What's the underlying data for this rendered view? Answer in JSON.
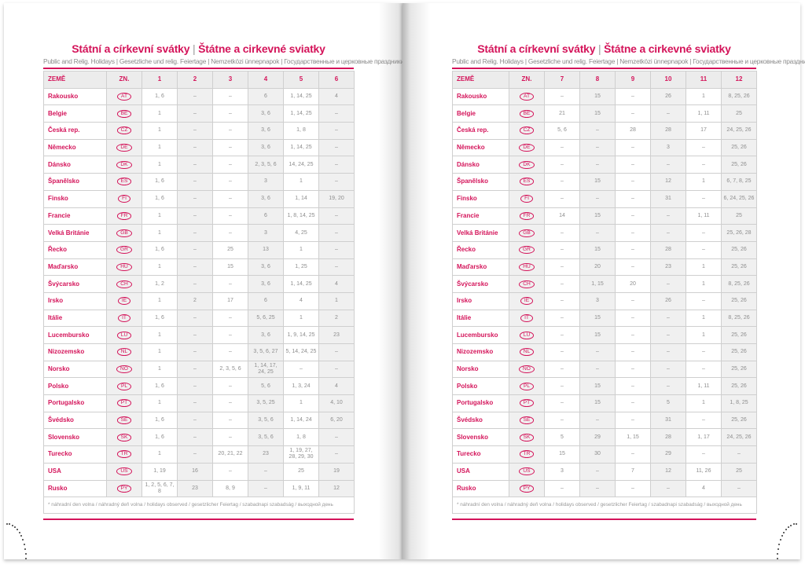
{
  "title_cz": "Státní a církevní svátky",
  "title_sep": "|",
  "title_sk": "Štátne a cirkevné sviatky",
  "subtitle": "Public and Relig. Holidays | Gesetzliche und relig. Feiertage | Nemzetközi ünnepnapok | Государственные и церковные праздники",
  "footnote": "* náhradní den volna / náhradný deň volna / holidays observed / gesetzlicher Feiertag / szabadnapi szabadság / выходной день",
  "headers": {
    "country": "ZEMĚ",
    "code": "ZN."
  },
  "accent_color": "#d4145a",
  "countries": [
    {
      "name": "Rakousko",
      "code": "AT"
    },
    {
      "name": "Belgie",
      "code": "BE"
    },
    {
      "name": "Česká rep.",
      "code": "CZ"
    },
    {
      "name": "Německo",
      "code": "DE"
    },
    {
      "name": "Dánsko",
      "code": "DK"
    },
    {
      "name": "Španělsko",
      "code": "ES"
    },
    {
      "name": "Finsko",
      "code": "FI"
    },
    {
      "name": "Francie",
      "code": "FR"
    },
    {
      "name": "Velká Británie",
      "code": "GB"
    },
    {
      "name": "Řecko",
      "code": "GR"
    },
    {
      "name": "Maďarsko",
      "code": "HU"
    },
    {
      "name": "Švýcarsko",
      "code": "CH"
    },
    {
      "name": "Irsko",
      "code": "IE"
    },
    {
      "name": "Itálie",
      "code": "IT"
    },
    {
      "name": "Lucembursko",
      "code": "LU"
    },
    {
      "name": "Nizozemsko",
      "code": "NL"
    },
    {
      "name": "Norsko",
      "code": "NO"
    },
    {
      "name": "Polsko",
      "code": "PL"
    },
    {
      "name": "Portugalsko",
      "code": "PT"
    },
    {
      "name": "Švédsko",
      "code": "SE"
    },
    {
      "name": "Slovensko",
      "code": "SK"
    },
    {
      "name": "Turecko",
      "code": "TR"
    },
    {
      "name": "USA",
      "code": "US"
    },
    {
      "name": "Rusko",
      "code": "PY"
    }
  ],
  "left_page": {
    "months": [
      "1",
      "2",
      "3",
      "4",
      "5",
      "6"
    ],
    "rows": [
      [
        "1, 6",
        "–",
        "–",
        "6",
        "1, 14, 25",
        "4"
      ],
      [
        "1",
        "–",
        "–",
        "3, 6",
        "1, 14, 25",
        "–"
      ],
      [
        "1",
        "–",
        "–",
        "3, 6",
        "1, 8",
        "–"
      ],
      [
        "1",
        "–",
        "–",
        "3, 6",
        "1, 14, 25",
        "–"
      ],
      [
        "1",
        "–",
        "–",
        "2, 3, 5, 6",
        "14, 24, 25",
        "–"
      ],
      [
        "1, 6",
        "–",
        "–",
        "3",
        "1",
        "–"
      ],
      [
        "1, 6",
        "–",
        "–",
        "3, 6",
        "1, 14",
        "19, 20"
      ],
      [
        "1",
        "–",
        "–",
        "6",
        "1, 8, 14, 25",
        "–"
      ],
      [
        "1",
        "–",
        "–",
        "3",
        "4, 25",
        "–"
      ],
      [
        "1, 6",
        "–",
        "25",
        "13",
        "1",
        "–"
      ],
      [
        "1",
        "–",
        "15",
        "3, 6",
        "1, 25",
        "–"
      ],
      [
        "1, 2",
        "–",
        "–",
        "3, 6",
        "1, 14, 25",
        "4"
      ],
      [
        "1",
        "2",
        "17",
        "6",
        "4",
        "1"
      ],
      [
        "1, 6",
        "–",
        "–",
        "5, 6, 25",
        "1",
        "2"
      ],
      [
        "1",
        "–",
        "–",
        "3, 6",
        "1, 9, 14, 25",
        "23"
      ],
      [
        "1",
        "–",
        "–",
        "3, 5, 6, 27",
        "5, 14, 24, 25",
        "–"
      ],
      [
        "1",
        "–",
        "2, 3, 5, 6",
        "1, 14, 17, 24, 25",
        "–",
        "–"
      ],
      [
        "1, 6",
        "–",
        "–",
        "5, 6",
        "1, 3, 24",
        "4"
      ],
      [
        "1",
        "–",
        "–",
        "3, 5, 25",
        "1",
        "4, 10"
      ],
      [
        "1, 6",
        "–",
        "–",
        "3, 5, 6",
        "1, 14, 24",
        "6, 20"
      ],
      [
        "1, 6",
        "–",
        "–",
        "3, 5, 6",
        "1, 8",
        "–"
      ],
      [
        "1",
        "–",
        "20, 21, 22",
        "23",
        "1, 19, 27, 28, 29, 30",
        "–"
      ],
      [
        "1, 19",
        "16",
        "–",
        "–",
        "25",
        "19"
      ],
      [
        "1, 2, 5, 6, 7, 8",
        "23",
        "8, 9",
        "–",
        "1, 9, 11",
        "12"
      ]
    ]
  },
  "right_page": {
    "months": [
      "7",
      "8",
      "9",
      "10",
      "11",
      "12"
    ],
    "rows": [
      [
        "–",
        "15",
        "–",
        "26",
        "1",
        "8, 25, 26"
      ],
      [
        "21",
        "15",
        "–",
        "–",
        "1, 11",
        "25"
      ],
      [
        "5, 6",
        "–",
        "28",
        "28",
        "17",
        "24, 25, 26"
      ],
      [
        "–",
        "–",
        "–",
        "3",
        "–",
        "25, 26"
      ],
      [
        "–",
        "–",
        "–",
        "–",
        "–",
        "25, 26"
      ],
      [
        "–",
        "15",
        "–",
        "12",
        "1",
        "6, 7, 8, 25"
      ],
      [
        "–",
        "–",
        "–",
        "31",
        "–",
        "6, 24, 25, 26"
      ],
      [
        "14",
        "15",
        "–",
        "–",
        "1, 11",
        "25"
      ],
      [
        "–",
        "–",
        "–",
        "–",
        "–",
        "25, 26, 28"
      ],
      [
        "–",
        "15",
        "–",
        "28",
        "–",
        "25, 26"
      ],
      [
        "–",
        "20",
        "–",
        "23",
        "1",
        "25, 26"
      ],
      [
        "–",
        "1, 15",
        "20",
        "–",
        "1",
        "8, 25, 26"
      ],
      [
        "–",
        "3",
        "–",
        "26",
        "–",
        "25, 26"
      ],
      [
        "–",
        "15",
        "–",
        "–",
        "1",
        "8, 25, 26"
      ],
      [
        "–",
        "15",
        "–",
        "–",
        "1",
        "25, 26"
      ],
      [
        "–",
        "–",
        "–",
        "–",
        "–",
        "25, 26"
      ],
      [
        "–",
        "–",
        "–",
        "–",
        "–",
        "25, 26"
      ],
      [
        "–",
        "15",
        "–",
        "–",
        "1, 11",
        "25, 26"
      ],
      [
        "–",
        "15",
        "–",
        "5",
        "1",
        "1, 8, 25"
      ],
      [
        "–",
        "–",
        "–",
        "31",
        "–",
        "25, 26"
      ],
      [
        "5",
        "29",
        "1, 15",
        "28",
        "1, 17",
        "24, 25, 26"
      ],
      [
        "15",
        "30",
        "–",
        "29",
        "–",
        "–"
      ],
      [
        "3",
        "–",
        "7",
        "12",
        "11, 26",
        "25"
      ],
      [
        "–",
        "–",
        "–",
        "–",
        "4",
        "–"
      ]
    ]
  }
}
